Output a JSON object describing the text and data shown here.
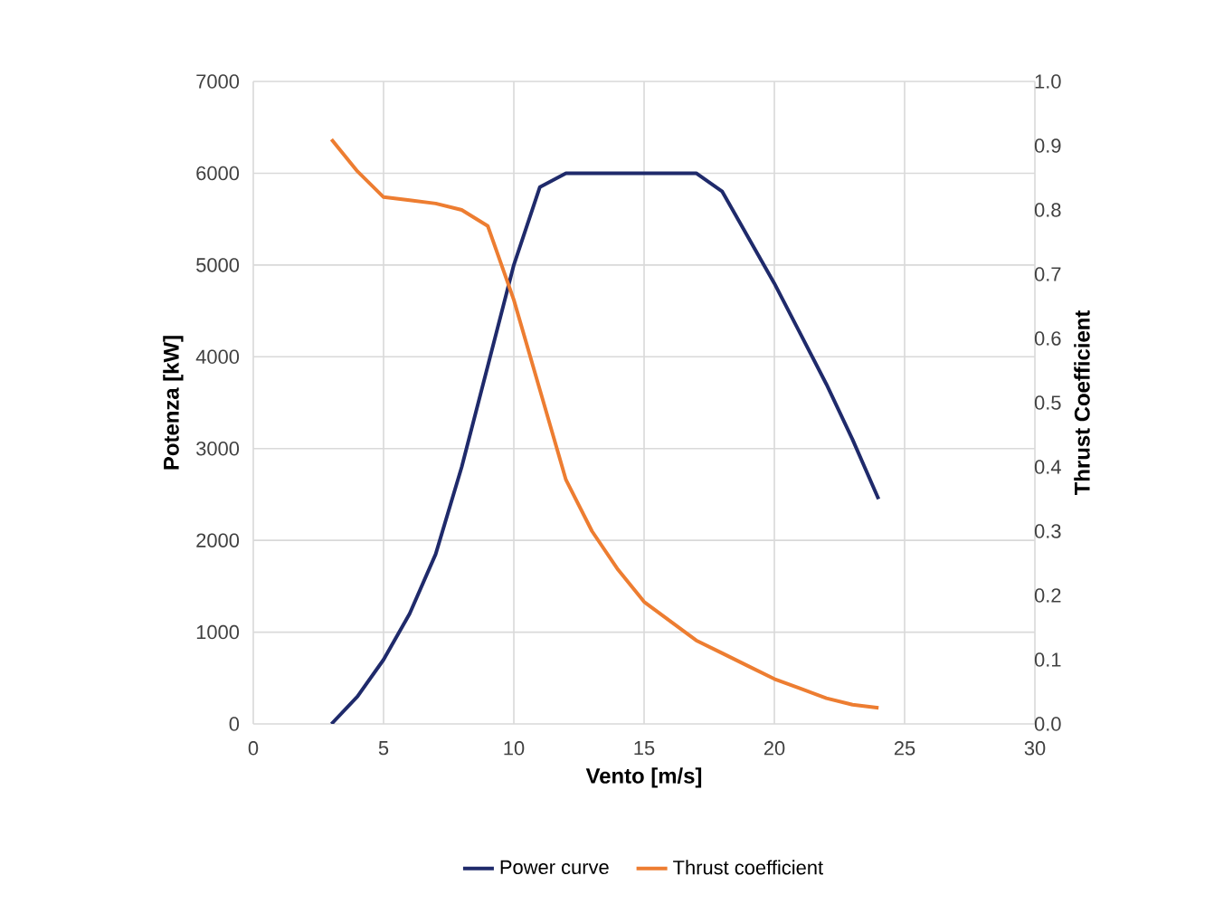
{
  "chart_data": {
    "type": "line",
    "xlabel": "Vento [m/s]",
    "ylabel": "Potenza [kW]",
    "y2label": "Thrust Coefficient",
    "x": [
      3,
      4,
      5,
      6,
      7,
      8,
      9,
      10,
      11,
      12,
      13,
      14,
      15,
      16,
      17,
      18,
      19,
      20,
      21,
      22,
      23,
      24
    ],
    "series": [
      {
        "name": "Power curve",
        "color": "#1f2a6b",
        "values": [
          0,
          300,
          700,
          1200,
          1850,
          2800,
          3900,
          5000,
          5850,
          6000,
          6000,
          6000,
          6000,
          6000,
          6000,
          5800,
          5300,
          4800,
          4250,
          3700,
          3100,
          2450
        ]
      },
      {
        "name": "Thrust coefficient",
        "color": "#ed7d31",
        "axis": "y2",
        "values": [
          0.91,
          0.86,
          0.82,
          0.815,
          0.81,
          0.8,
          0.775,
          0.66,
          0.52,
          0.38,
          0.3,
          0.24,
          0.19,
          0.16,
          0.13,
          0.11,
          0.09,
          0.07,
          0.055,
          0.04,
          0.03,
          0.025
        ]
      }
    ],
    "xlim": [
      0,
      30
    ],
    "xticks": [
      0,
      5,
      10,
      15,
      20,
      25,
      30
    ],
    "ylim": [
      0,
      7000
    ],
    "yticks": [
      0,
      1000,
      2000,
      3000,
      4000,
      5000,
      6000,
      7000
    ],
    "y2lim": [
      0,
      1
    ],
    "y2ticks": [
      {
        "value": 0,
        "label": "0.0"
      },
      {
        "value": 0.1,
        "label": "0.1"
      },
      {
        "value": 0.2,
        "label": "0.2"
      },
      {
        "value": 0.3,
        "label": "0.3"
      },
      {
        "value": 0.4,
        "label": "0.4"
      },
      {
        "value": 0.5,
        "label": "0.5"
      },
      {
        "value": 0.6,
        "label": "0.6"
      },
      {
        "value": 0.7,
        "label": "0.7"
      },
      {
        "value": 0.8,
        "label": "0.8"
      },
      {
        "value": 0.9,
        "label": "0.9"
      },
      {
        "value": 1,
        "label": "1.0"
      }
    ],
    "grid": true,
    "legend": "bottom",
    "marker": "none",
    "line_style": "solid"
  }
}
